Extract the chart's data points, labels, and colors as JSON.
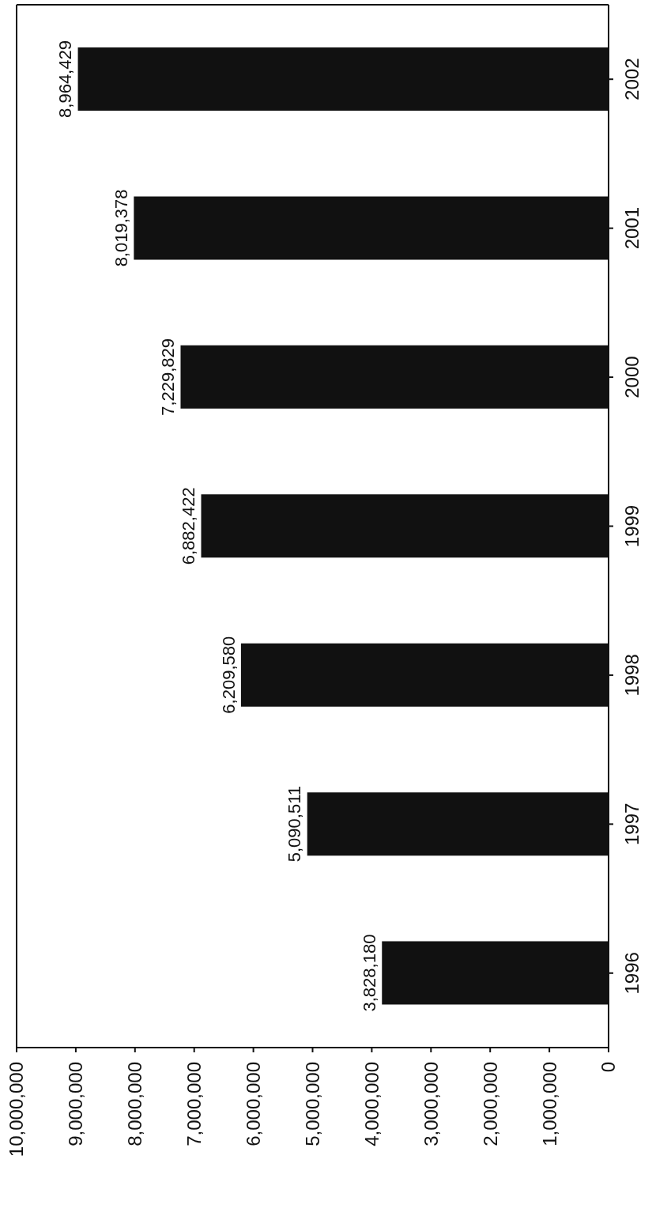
{
  "chart_data": {
    "type": "bar",
    "orientation": "horizontal",
    "categories": [
      "2002",
      "2001",
      "2000",
      "1999",
      "1998",
      "1997",
      "1996"
    ],
    "values": [
      8964429,
      8019378,
      7229829,
      6882422,
      6209580,
      5090511,
      3828180
    ],
    "value_labels": [
      "8,964,429",
      "8,019,378",
      "7,229,829",
      "6,882,422",
      "6,209,580",
      "5,090,511",
      "3,828,180"
    ],
    "color": "#111111",
    "xlim": [
      10000000,
      0
    ],
    "xticks": [
      {
        "value": 10000000,
        "label": "10,000,000"
      },
      {
        "value": 9000000,
        "label": "9,000,000"
      },
      {
        "value": 8000000,
        "label": "8,000,000"
      },
      {
        "value": 7000000,
        "label": "7,000,000"
      },
      {
        "value": 6000000,
        "label": "6,000,000"
      },
      {
        "value": 5000000,
        "label": "5,000,000"
      },
      {
        "value": 4000000,
        "label": "4,000,000"
      },
      {
        "value": 3000000,
        "label": "3,000,000"
      },
      {
        "value": 2000000,
        "label": "2,000,000"
      },
      {
        "value": 1000000,
        "label": "1,000,000"
      },
      0
    ]
  }
}
